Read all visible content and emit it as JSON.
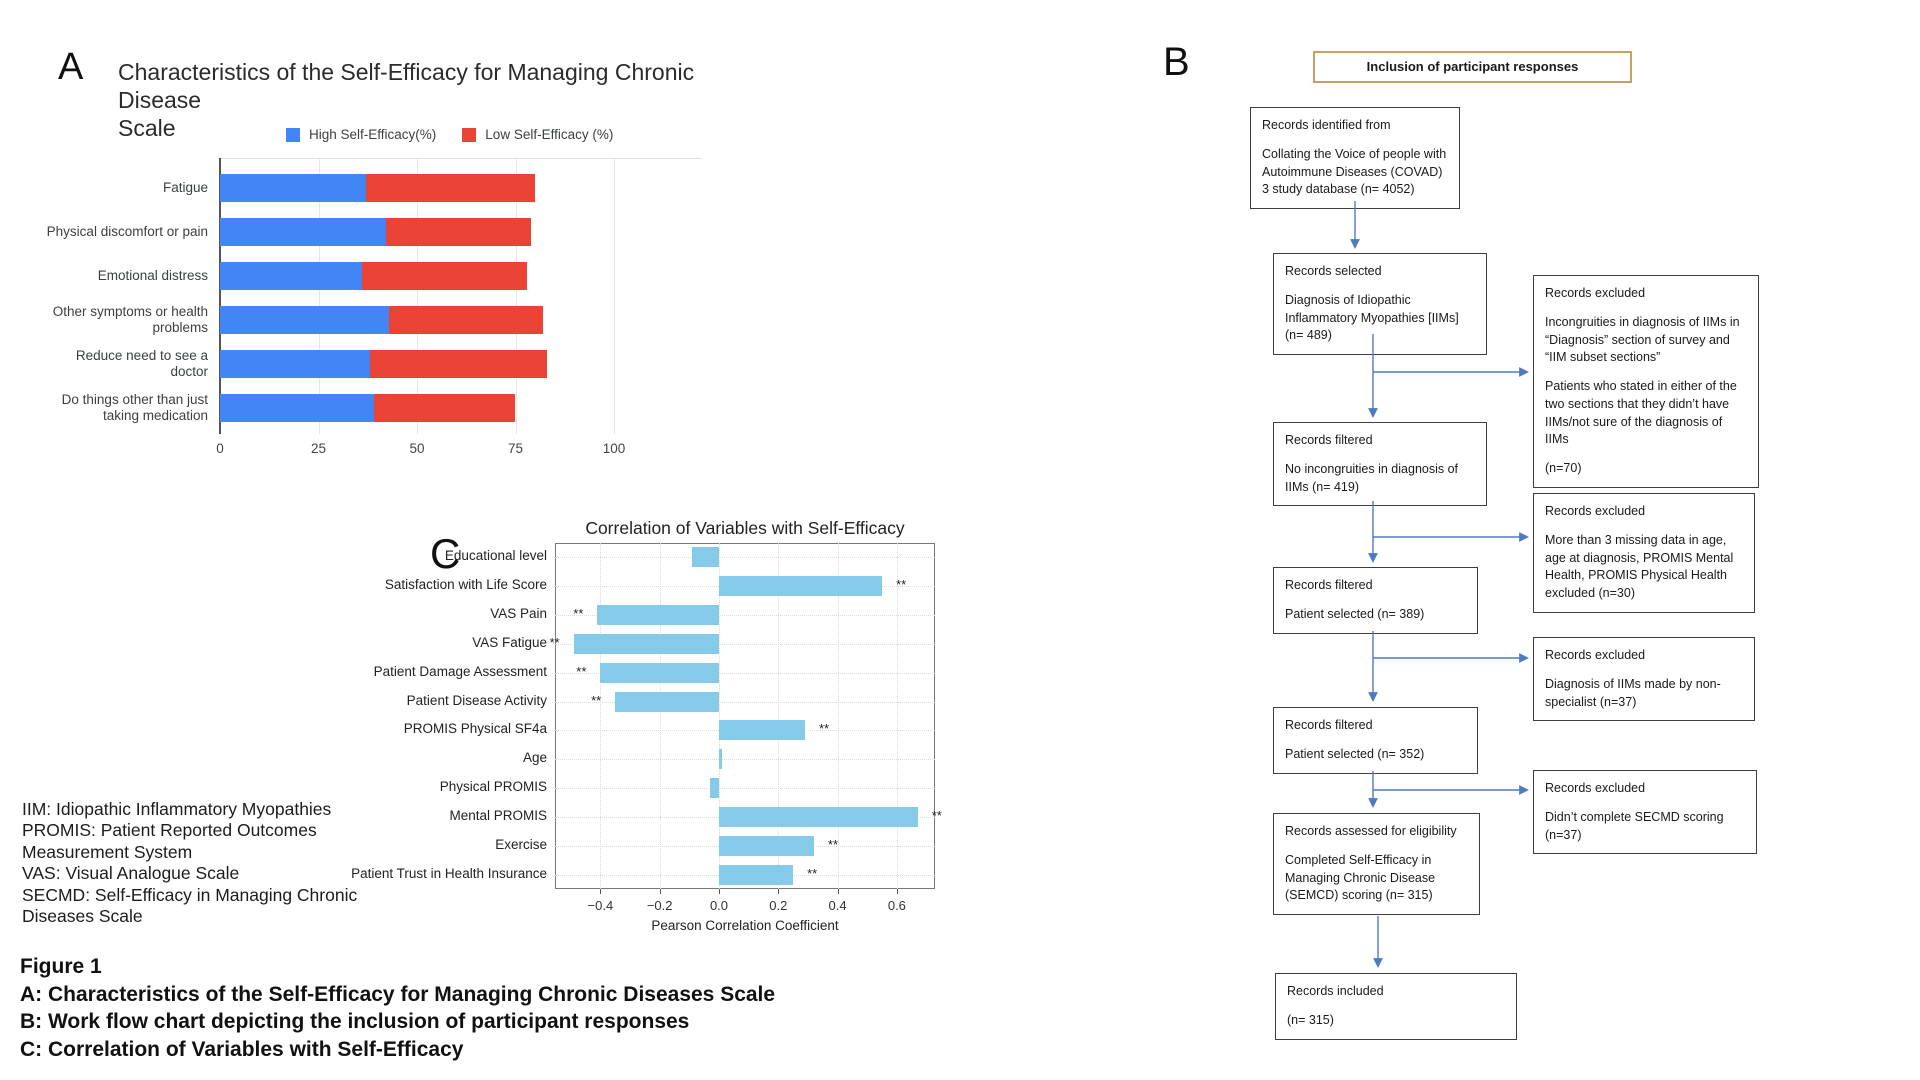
{
  "figure": {
    "caption": {
      "title": "Figure 1",
      "lines": [
        "A: Characteristics of the Self-Efficacy for Managing Chronic Diseases Scale",
        "B: Work flow chart depicting the inclusion of participant responses",
        "C: Correlation of Variables with Self-Efficacy"
      ]
    },
    "abbreviations": [
      "IIM: Idiopathic Inflammatory Myopathies",
      "PROMIS: Patient Reported Outcomes",
      "Measurement System",
      "VAS: Visual Analogue Scale",
      "SECMD: Self-Efficacy in Managing Chronic",
      "Diseases Scale"
    ]
  },
  "panel_a": {
    "label": "A",
    "title_line1": "Characteristics of the Self-Efficacy for Managing Chronic Disease",
    "title_line2": "Scale"
  },
  "panel_b": {
    "label": "B",
    "header": "Inclusion of participant responses",
    "boxes": {
      "identified": {
        "title": "Records identified from",
        "p1": "Collating the Voice of people with Autoimmune Diseases (COVAD) 3 study database (n= 4052)"
      },
      "selected": {
        "title": "Records selected",
        "p1": "Diagnosis of Idiopathic Inflammatory Myopathies [IIMs] (n= 489)"
      },
      "excluded1": {
        "title": "Records excluded",
        "p1": "Incongruities in diagnosis of IIMs in “Diagnosis” section of survey and “IIM subset sections”",
        "p2": "Patients who stated in either of the two sections that they didn’t have IIMs/not sure of the diagnosis of IIMs",
        "p3": "(n=70)"
      },
      "filtered1": {
        "title": "Records filtered",
        "p1": "No incongruities in diagnosis of IIMs (n= 419)"
      },
      "excluded2": {
        "title": "Records excluded",
        "p1": "More than 3 missing data in age, age at diagnosis, PROMIS Mental Health, PROMIS Physical Health excluded (n=30)"
      },
      "filtered2": {
        "title": "Records filtered",
        "p1": "Patient selected (n= 389)"
      },
      "excluded3": {
        "title": "Records excluded",
        "p1": "Diagnosis of IIMs made by non-specialist (n=37)"
      },
      "filtered3": {
        "title": "Records filtered",
        "p1": "Patient selected (n= 352)"
      },
      "excluded4": {
        "title": "Records excluded",
        "p1": "Didn’t complete SECMD scoring (n=37)"
      },
      "assessed": {
        "title": "Records assessed for eligibility",
        "p1": "Completed Self-Efficacy in Managing Chronic Disease (SEMCD) scoring (n= 315)"
      },
      "included": {
        "title": "Records included",
        "p1": "(n= 315)"
      }
    }
  },
  "panel_c": {
    "label": "C",
    "title": "Correlation of Variables with Self-Efficacy",
    "xlabel": "Pearson Correlation Coefficient"
  },
  "chart_data": [
    {
      "panel": "A",
      "type": "bar",
      "orientation": "horizontal",
      "stacked": true,
      "title": "Characteristics of the Self-Efficacy for Managing Chronic Disease Scale",
      "categories": [
        "Fatigue",
        "Physical discomfort or pain",
        "Emotional distress",
        "Other symptoms or health problems",
        "Reduce need to see a doctor",
        "Do things other than just taking medication"
      ],
      "series": [
        {
          "name": "High Self-Efficacy(%)",
          "color": "#4285F4",
          "values": [
            37,
            42,
            36,
            43,
            38,
            39
          ]
        },
        {
          "name": "Low Self-Efficacy (%)",
          "color": "#EA4335",
          "values": [
            43,
            37,
            42,
            39,
            45,
            36
          ]
        }
      ],
      "xlabel": "",
      "ylabel": "",
      "xlim": [
        0,
        121
      ],
      "x_ticks": [
        0,
        25,
        50,
        75,
        100
      ],
      "grid": "vertical",
      "legend_position": "top"
    },
    {
      "panel": "C",
      "type": "bar",
      "orientation": "horizontal",
      "title": "Correlation of Variables with Self-Efficacy",
      "xlabel": "Pearson Correlation Coefficient",
      "categories": [
        "Educational level",
        "Satisfaction with Life Score",
        "VAS Pain",
        "VAS Fatigue",
        "Patient Damage Assessment",
        "Patient Disease Activity",
        "PROMIS Physical SF4a",
        "Age",
        "Physical PROMIS",
        "Mental PROMIS",
        "Exercise",
        "Patient Trust in Health Insurance"
      ],
      "values": [
        -0.09,
        0.55,
        -0.41,
        -0.49,
        -0.4,
        -0.35,
        0.29,
        0.01,
        -0.03,
        0.67,
        0.32,
        0.25
      ],
      "significance": [
        "",
        "**",
        "**",
        "**",
        "**",
        "**",
        "**",
        "",
        "",
        "**",
        "**",
        "**"
      ],
      "bar_color": "#85CAE9",
      "xlim": [
        -0.55,
        0.73
      ],
      "x_ticks": [
        -0.4,
        -0.2,
        0.0,
        0.2,
        0.4,
        0.6
      ],
      "x_tick_labels": [
        "−0.4",
        "−0.2",
        "0.0",
        "0.2",
        "0.4",
        "0.6"
      ],
      "grid": "dotted-both"
    }
  ]
}
